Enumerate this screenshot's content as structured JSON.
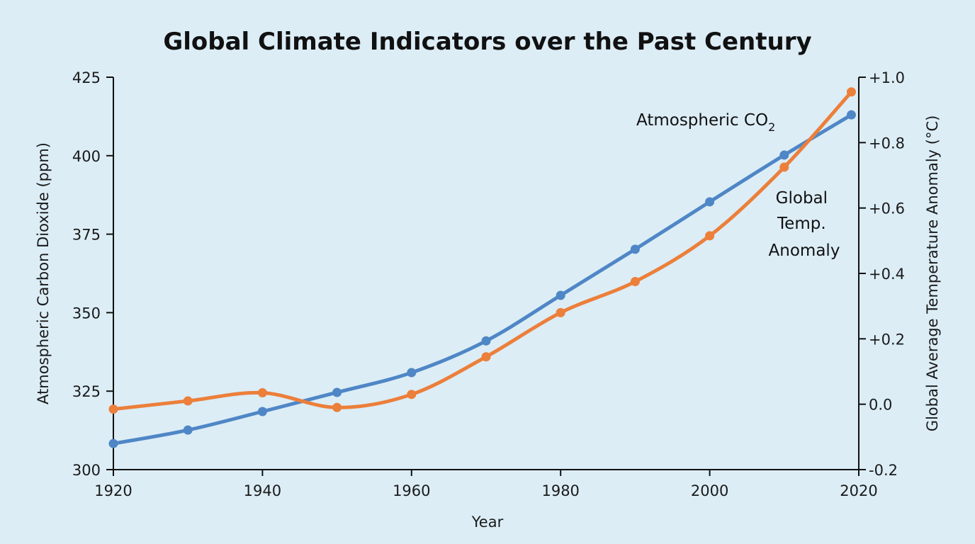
{
  "chart_data": {
    "type": "line",
    "title": "Global Climate Indicators over the Past Century",
    "xlabel": "Year",
    "ylabel_left": "Atmospheric Carbon Dioxide (ppm)",
    "ylabel_right": "Global Average Temperature Anomaly (°C)",
    "xlim": [
      1920,
      2020
    ],
    "ylim_left": [
      300,
      425
    ],
    "ylim_right": [
      -0.2,
      1.0
    ],
    "x_ticks": [
      "1920",
      "1940",
      "1960",
      "1980",
      "2000",
      "2020"
    ],
    "y_ticks_left": [
      "300",
      "325",
      "350",
      "375",
      "400",
      "425"
    ],
    "y_ticks_right": [
      "-0.2",
      "0.0",
      "+0.2",
      "+0.4",
      "+0.6",
      "+0.8",
      "+1.0"
    ],
    "grid": false,
    "series": [
      {
        "name": "Atmospheric CO₂",
        "name_main": "Atmospheric CO",
        "name_sub": "2",
        "axis": "left",
        "color": "#4f86c6",
        "x": [
          1920,
          1930,
          1940,
          1950,
          1960,
          1970,
          1980,
          1990,
          2000,
          2010,
          2019
        ],
        "values": [
          308.3,
          312.6,
          318.5,
          324.6,
          330.9,
          341,
          355.5,
          370.2,
          385.3,
          400.2,
          413
        ]
      },
      {
        "name": "Global Temp. Anomaly",
        "name_lines": [
          "Global",
          "Temp.",
          "Anomaly"
        ],
        "axis": "right",
        "color": "#ec7f3a",
        "x": [
          1920,
          1930,
          1940,
          1950,
          1960,
          1970,
          1980,
          1990,
          2000,
          2010,
          2019
        ],
        "values": [
          -0.015,
          0.01,
          0.035,
          -0.01,
          0.03,
          0.145,
          0.28,
          0.375,
          0.515,
          0.725,
          0.955
        ]
      }
    ]
  }
}
